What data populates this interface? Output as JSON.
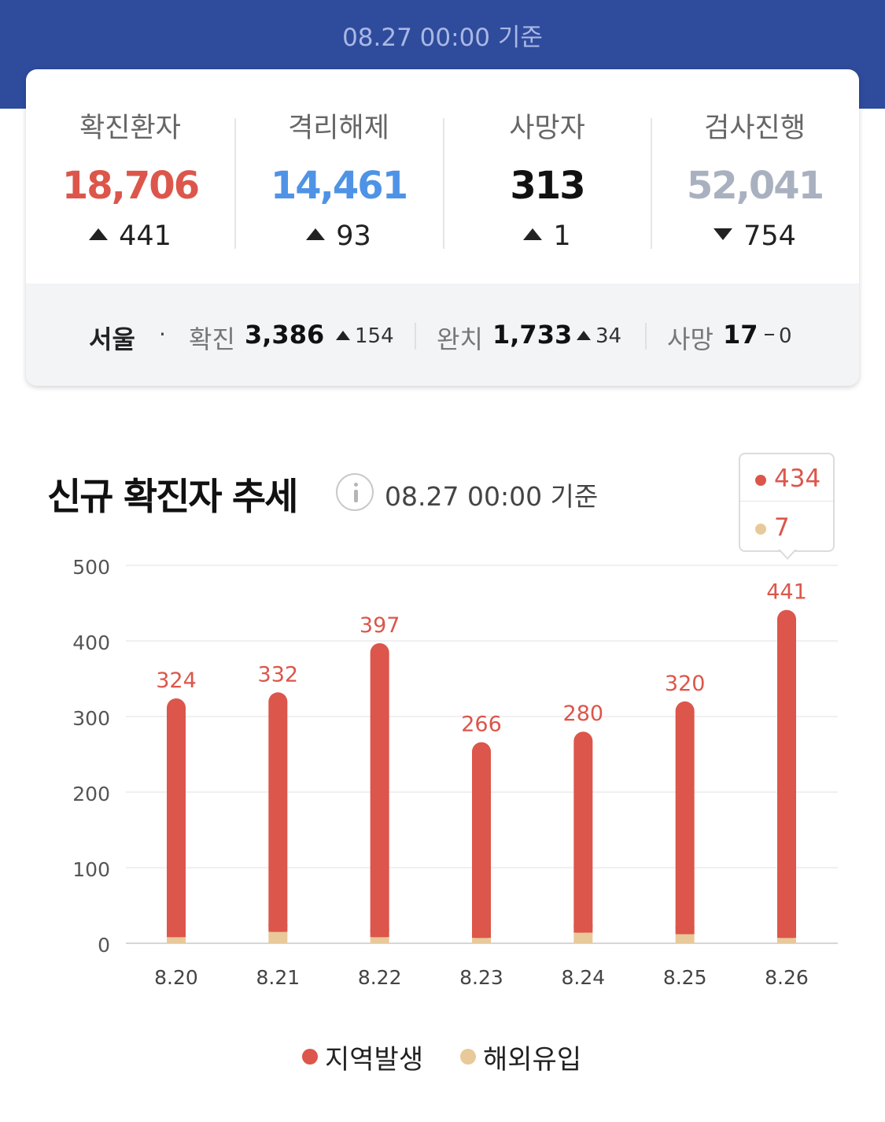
{
  "header": {
    "date": "08.27 00:00 기준"
  },
  "summary": {
    "stats": [
      {
        "label": "확진환자",
        "value": "18,706",
        "delta": "441",
        "direction": "up",
        "color": "#dc564b"
      },
      {
        "label": "격리해제",
        "value": "14,461",
        "delta": "93",
        "direction": "up",
        "color": "#4e93e6"
      },
      {
        "label": "사망자",
        "value": "313",
        "delta": "1",
        "direction": "up",
        "color": "#111111"
      },
      {
        "label": "검사진행",
        "value": "52,041",
        "delta": "754",
        "direction": "down",
        "color": "#a9b1c0"
      }
    ]
  },
  "seoul": {
    "city": "서울",
    "confirmed_label": "확진",
    "confirmed": "3,386",
    "confirmed_delta": "154",
    "released_label": "완치",
    "released": "1,733",
    "released_delta": "34",
    "deaths_label": "사망",
    "deaths": "17",
    "deaths_delta": "0"
  },
  "chart_title": "신규 확진자 추세",
  "chart_date": "08.27 00:00 기준",
  "tooltip": {
    "local": "434",
    "overseas": "7"
  },
  "colors": {
    "local": "#dc564b",
    "overseas": "#e8c99a",
    "header": "#2f4b9c"
  },
  "icons": {
    "info": "info-icon"
  },
  "chart_data": {
    "type": "bar",
    "stacked": true,
    "categories": [
      "8.20",
      "8.21",
      "8.22",
      "8.23",
      "8.24",
      "8.25",
      "8.26"
    ],
    "series": [
      {
        "name": "지역발생",
        "values": [
          316,
          317,
          389,
          259,
          266,
          308,
          434
        ]
      },
      {
        "name": "해외유입",
        "values": [
          8,
          15,
          8,
          7,
          14,
          12,
          7
        ]
      }
    ],
    "totals": [
      "324",
      "332",
      "397",
      "266",
      "280",
      "320",
      "441"
    ],
    "ylim": [
      0,
      500
    ],
    "yticks": [
      "0",
      "100",
      "200",
      "300",
      "400",
      "500"
    ],
    "grid": true,
    "legend": "bottom-center"
  }
}
